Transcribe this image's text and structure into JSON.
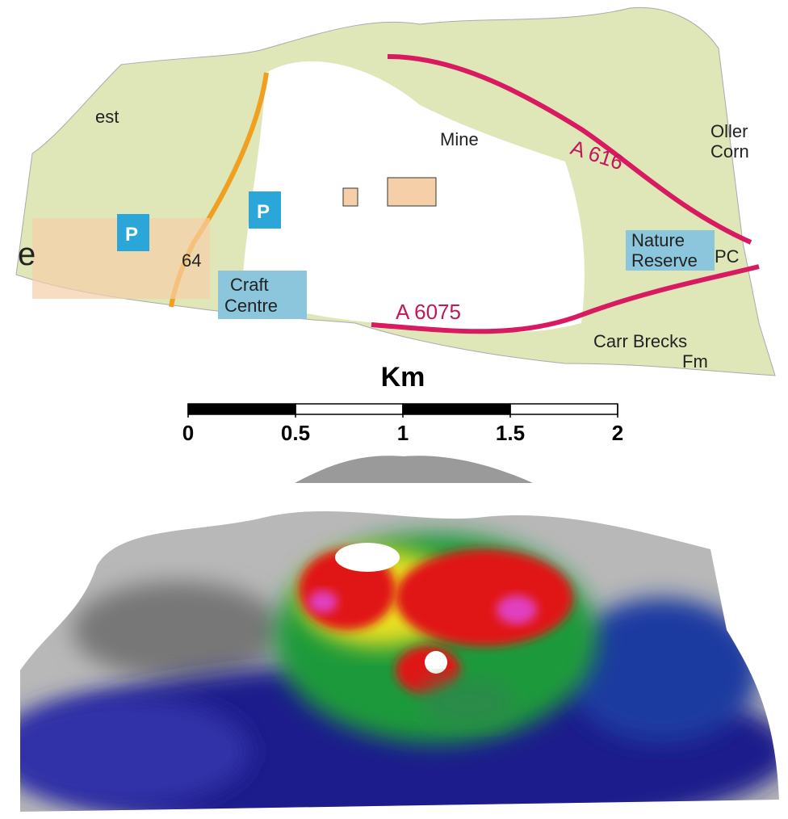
{
  "map": {
    "labels": [
      "est",
      "Mine",
      "A 616",
      "A 6075",
      "Craft",
      "Centre",
      "Nature",
      "Reserve",
      "PC",
      "Carr Brecks",
      "Fm",
      "64",
      "P",
      "P",
      "Oller",
      "Corn",
      "e"
    ]
  },
  "scale_bar": {
    "title": "Km",
    "ticks": [
      0,
      0.5,
      1,
      1.5,
      2
    ]
  }
}
